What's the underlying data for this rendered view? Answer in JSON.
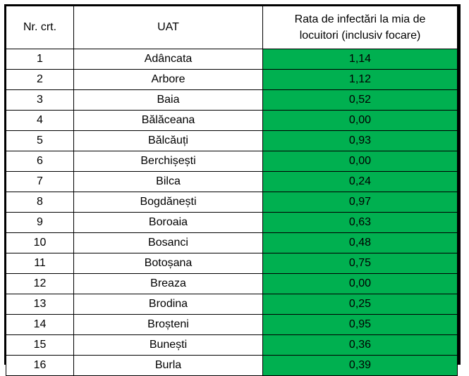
{
  "table": {
    "headers": {
      "nr": "Nr. crt.",
      "uat": "UAT",
      "rate_line1": "Rata de infectări la mia de",
      "rate_line2": "locuitori (inclusiv focare)"
    },
    "rate_fill_color": "#00b050",
    "rows": [
      {
        "nr": "1",
        "uat": "Adâncata",
        "rate": "1,14"
      },
      {
        "nr": "2",
        "uat": "Arbore",
        "rate": "1,12"
      },
      {
        "nr": "3",
        "uat": "Baia",
        "rate": "0,52"
      },
      {
        "nr": "4",
        "uat": "Bălăceana",
        "rate": "0,00"
      },
      {
        "nr": "5",
        "uat": "Bălcăuți",
        "rate": "0,93"
      },
      {
        "nr": "6",
        "uat": "Berchișești",
        "rate": "0,00"
      },
      {
        "nr": "7",
        "uat": "Bilca",
        "rate": "0,24"
      },
      {
        "nr": "8",
        "uat": "Bogdănești",
        "rate": "0,97"
      },
      {
        "nr": "9",
        "uat": "Boroaia",
        "rate": "0,63"
      },
      {
        "nr": "10",
        "uat": "Bosanci",
        "rate": "0,48"
      },
      {
        "nr": "11",
        "uat": "Botoșana",
        "rate": "0,75"
      },
      {
        "nr": "12",
        "uat": "Breaza",
        "rate": "0,00"
      },
      {
        "nr": "13",
        "uat": "Brodina",
        "rate": "0,25"
      },
      {
        "nr": "14",
        "uat": "Broșteni",
        "rate": "0,95"
      },
      {
        "nr": "15",
        "uat": "Bunești",
        "rate": "0,36"
      },
      {
        "nr": "16",
        "uat": "Burla",
        "rate": "0,39"
      }
    ]
  }
}
